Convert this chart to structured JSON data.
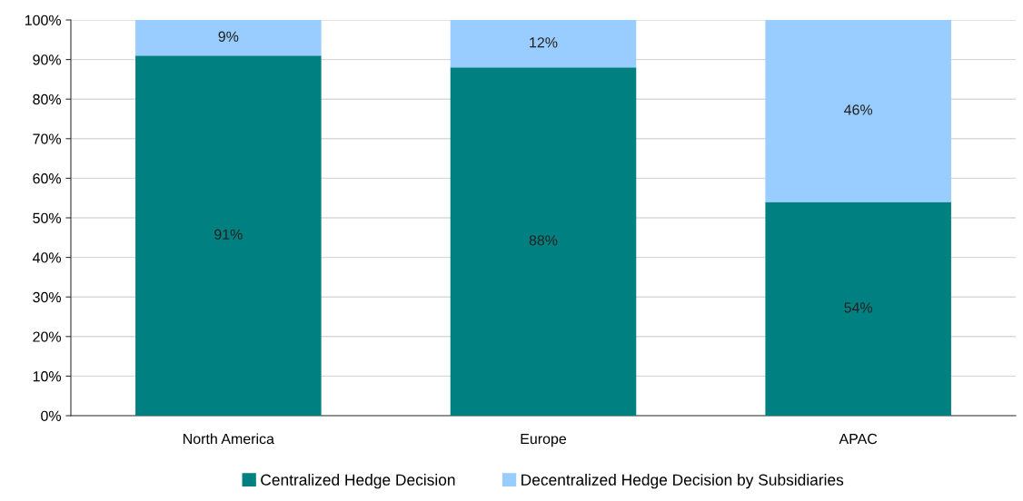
{
  "chart_data": {
    "type": "bar",
    "stacked": true,
    "categories": [
      "North America",
      "Europe",
      "APAC"
    ],
    "series": [
      {
        "name": "Centralized Hedge Decision",
        "color": "#008080",
        "values": [
          91,
          88,
          54
        ],
        "value_labels": [
          "91%",
          "88%",
          "54%"
        ]
      },
      {
        "name": "Decentralized Hedge Decision by Subsidiaries",
        "color": "#99ccff",
        "values": [
          9,
          12,
          46
        ],
        "value_labels": [
          "9%",
          "12%",
          "46%"
        ]
      }
    ],
    "ylim": [
      0,
      100
    ],
    "yticks": [
      {
        "value": 0,
        "label": "0%"
      },
      {
        "value": 10,
        "label": "10%"
      },
      {
        "value": 20,
        "label": "20%"
      },
      {
        "value": 30,
        "label": "30%"
      },
      {
        "value": 40,
        "label": "40%"
      },
      {
        "value": 50,
        "label": "50%"
      },
      {
        "value": 60,
        "label": "60%"
      },
      {
        "value": 70,
        "label": "70%"
      },
      {
        "value": 80,
        "label": "80%"
      },
      {
        "value": 90,
        "label": "90%"
      },
      {
        "value": 100,
        "label": "100%"
      }
    ],
    "grid": "y",
    "legend": "bottom"
  }
}
